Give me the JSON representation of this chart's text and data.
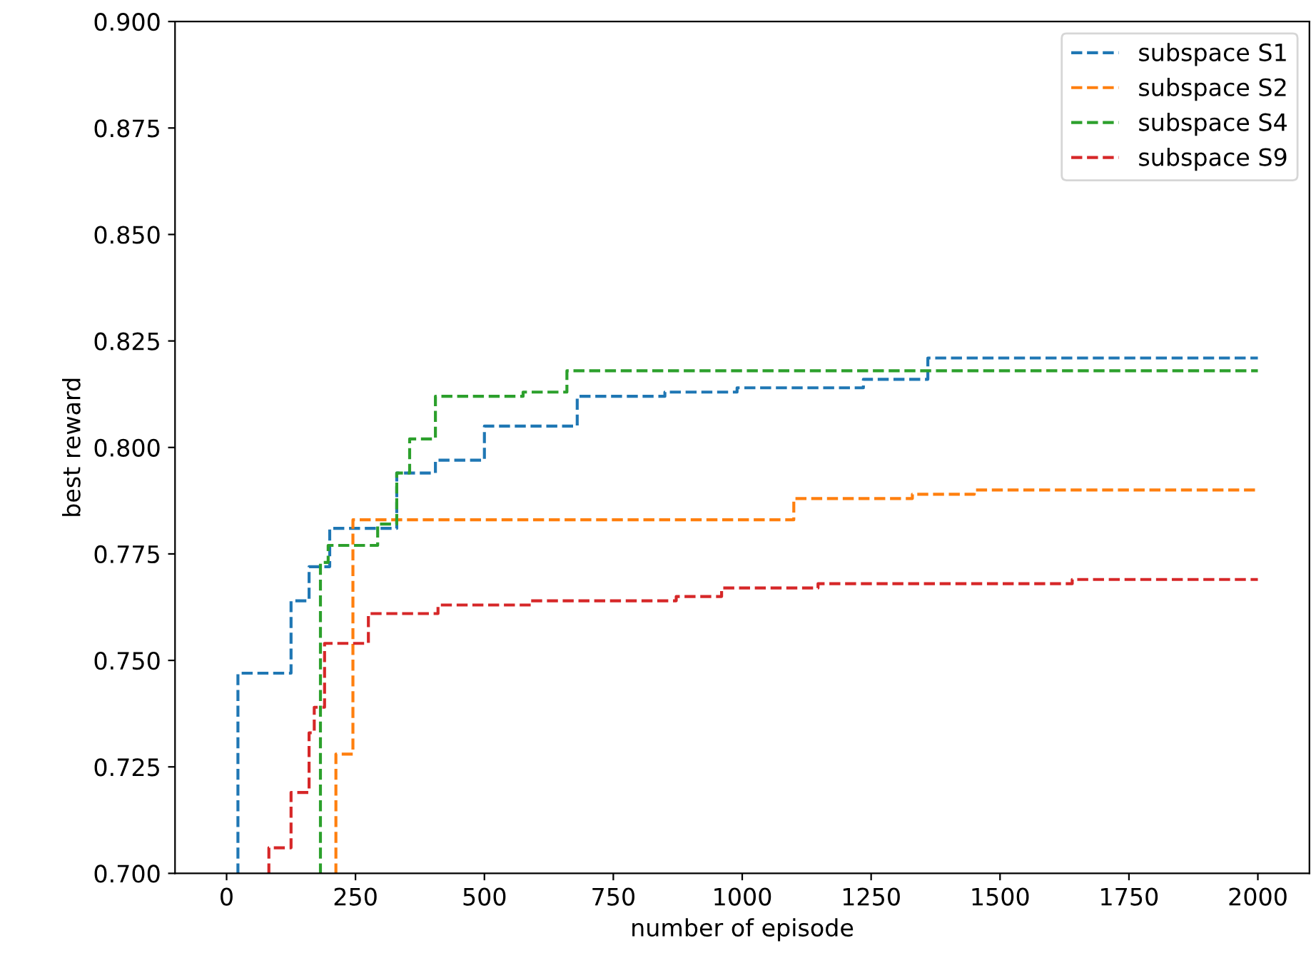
{
  "chart_data": {
    "type": "step",
    "xlabel": "number of episode",
    "ylabel": "best reward",
    "xlim": [
      -100,
      2100
    ],
    "ylim": [
      0.7,
      0.9
    ],
    "xticks": [
      0,
      250,
      500,
      750,
      1000,
      1250,
      1500,
      1750,
      2000
    ],
    "yticks": [
      {
        "value": 0.7,
        "label": "0.700"
      },
      {
        "value": 0.725,
        "label": "0.725"
      },
      {
        "value": 0.75,
        "label": "0.750"
      },
      {
        "value": 0.775,
        "label": "0.775"
      },
      {
        "value": 0.8,
        "label": "0.800"
      },
      {
        "value": 0.825,
        "label": "0.825"
      },
      {
        "value": 0.85,
        "label": "0.850"
      },
      {
        "value": 0.875,
        "label": "0.875"
      },
      {
        "value": 0.9,
        "label": "0.900"
      }
    ],
    "line_style": "dashed",
    "legend": "top right",
    "grid": false,
    "series": [
      {
        "name": "subspace S1",
        "color": "#1f77b4",
        "x": [
          20,
          22,
          125,
          160,
          200,
          330,
          405,
          500,
          680,
          850,
          990,
          1235,
          1360,
          2000
        ],
        "values": [
          0.7,
          0.747,
          0.764,
          0.772,
          0.781,
          0.794,
          0.797,
          0.805,
          0.812,
          0.813,
          0.814,
          0.816,
          0.821,
          0.821
        ]
      },
      {
        "name": "subspace S2",
        "color": "#ff7f0e",
        "x": [
          210,
          212,
          245,
          1100,
          1330,
          1450,
          2000
        ],
        "values": [
          0.7,
          0.728,
          0.783,
          0.788,
          0.789,
          0.79,
          0.79
        ]
      },
      {
        "name": "subspace S4",
        "color": "#2ca02c",
        "x": [
          180,
          182,
          197,
          293,
          330,
          355,
          405,
          575,
          660,
          2000
        ],
        "values": [
          0.7,
          0.773,
          0.777,
          0.782,
          0.794,
          0.802,
          0.812,
          0.813,
          0.818,
          0.818
        ]
      },
      {
        "name": "subspace S9",
        "color": "#d62728",
        "x": [
          80,
          82,
          125,
          160,
          170,
          190,
          275,
          410,
          590,
          872,
          960,
          1147,
          1640,
          2000
        ],
        "values": [
          0.7,
          0.706,
          0.719,
          0.733,
          0.739,
          0.754,
          0.761,
          0.763,
          0.764,
          0.765,
          0.767,
          0.768,
          0.769,
          0.769
        ]
      }
    ]
  }
}
